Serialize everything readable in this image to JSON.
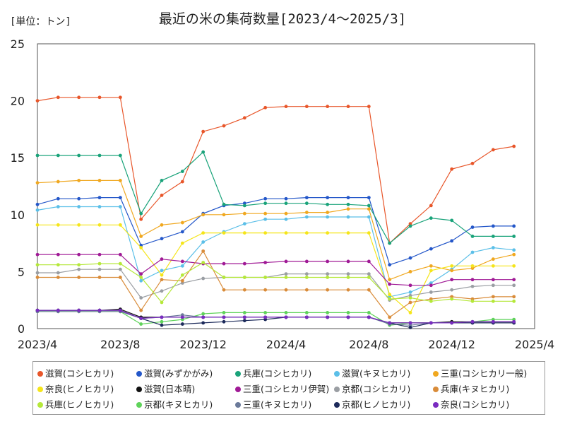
{
  "unit_label": "[単位：トン]",
  "title": "最近の米の集荷数量[2023/4～2025/3]",
  "chart_data": {
    "type": "line",
    "title": "最近の米の集荷数量[2023/4～2025/3]",
    "unit": "[単位：トン]",
    "xlabel": "",
    "ylabel": "",
    "ylim": [
      0,
      25
    ],
    "yticks": [
      "0",
      "5",
      "10",
      "15",
      "20",
      "25"
    ],
    "xticks": [
      "2023/4",
      "2023/8",
      "2023/12",
      "2024/4",
      "2024/8",
      "2024/12",
      "2025/4"
    ],
    "x": [
      "2023/4",
      "2023/5",
      "2023/6",
      "2023/7",
      "2023/8",
      "2023/9",
      "2023/10",
      "2023/11",
      "2023/12",
      "2024/1",
      "2024/2",
      "2024/3",
      "2024/4",
      "2024/5",
      "2024/6",
      "2024/7",
      "2024/8",
      "2024/9",
      "2024/10",
      "2024/11",
      "2024/12",
      "2025/1",
      "2025/2",
      "2025/3"
    ],
    "grid": true,
    "legend_position": "bottom",
    "series": [
      {
        "name": "滋賀(コシヒカリ)",
        "color": "#e8562a",
        "values": [
          20.0,
          20.3,
          20.3,
          20.3,
          20.3,
          9.6,
          11.7,
          12.9,
          17.3,
          17.8,
          18.5,
          19.4,
          19.5,
          19.5,
          19.5,
          19.5,
          19.5,
          7.5,
          9.2,
          10.8,
          14.0,
          14.5,
          15.7,
          16.0
        ]
      },
      {
        "name": "滋賀(みずかがみ)",
        "color": "#2457c9",
        "values": [
          10.9,
          11.4,
          11.4,
          11.5,
          11.5,
          7.3,
          7.9,
          8.5,
          10.1,
          10.8,
          11.0,
          11.4,
          11.4,
          11.5,
          11.5,
          11.5,
          11.5,
          5.6,
          6.2,
          7.0,
          7.7,
          8.9,
          9.0,
          9.0
        ]
      },
      {
        "name": "兵庫(コシヒカリ)",
        "color": "#1aa37a",
        "values": [
          15.2,
          15.2,
          15.2,
          15.2,
          15.2,
          10.1,
          13.0,
          13.8,
          15.5,
          10.9,
          10.8,
          11.0,
          11.0,
          11.0,
          10.9,
          10.9,
          10.8,
          7.5,
          9.0,
          9.7,
          9.5,
          8.1,
          8.1,
          8.1
        ]
      },
      {
        "name": "滋賀(キヌヒカリ)",
        "color": "#5bbfe8",
        "values": [
          10.4,
          10.7,
          10.7,
          10.7,
          10.7,
          4.2,
          5.1,
          5.5,
          7.6,
          8.5,
          9.2,
          9.6,
          9.6,
          9.8,
          9.8,
          9.8,
          9.8,
          2.8,
          3.2,
          4.0,
          5.2,
          6.7,
          7.1,
          6.9
        ]
      },
      {
        "name": "三重(コシヒカリ一般)",
        "color": "#f0a820",
        "values": [
          12.8,
          12.9,
          13.0,
          13.0,
          13.0,
          8.1,
          9.1,
          9.3,
          10.0,
          10.0,
          10.1,
          10.1,
          10.1,
          10.2,
          10.2,
          10.5,
          10.5,
          4.3,
          5.0,
          5.5,
          5.1,
          5.3,
          6.1,
          6.5
        ]
      },
      {
        "name": "奈良(ヒノヒカリ)",
        "color": "#f5e51a",
        "values": [
          9.1,
          9.1,
          9.1,
          9.1,
          9.1,
          7.1,
          4.7,
          7.5,
          8.4,
          8.4,
          8.4,
          8.4,
          8.4,
          8.4,
          8.4,
          8.4,
          8.4,
          3.0,
          1.4,
          5.1,
          5.5,
          5.5,
          5.5,
          5.5
        ]
      },
      {
        "name": "滋賀(日本晴)",
        "color": "#111111",
        "values": [
          1.6,
          1.6,
          1.6,
          1.6,
          1.7,
          1.0,
          1.0,
          1.0,
          1.0,
          1.0,
          1.0,
          1.0,
          1.0,
          1.0,
          1.0,
          1.0,
          1.0,
          0.5,
          0.5,
          0.5,
          0.6,
          0.6,
          0.6,
          0.6
        ]
      },
      {
        "name": "三重(コシヒカリ伊賀)",
        "color": "#a01a96",
        "values": [
          6.5,
          6.5,
          6.5,
          6.5,
          6.5,
          4.8,
          6.1,
          5.9,
          5.7,
          5.7,
          5.7,
          5.8,
          5.9,
          5.9,
          5.9,
          5.9,
          5.9,
          3.9,
          3.8,
          3.8,
          4.3,
          4.3,
          4.3,
          4.3
        ]
      },
      {
        "name": "京都(コシヒカリ)",
        "color": "#9a9ea3",
        "values": [
          4.9,
          4.9,
          5.2,
          5.2,
          5.2,
          2.7,
          3.3,
          4.0,
          4.4,
          4.5,
          4.5,
          4.5,
          4.8,
          4.8,
          4.8,
          4.8,
          4.8,
          2.5,
          2.9,
          3.2,
          3.4,
          3.7,
          3.8,
          3.8
        ]
      },
      {
        "name": "兵庫(キヌヒカリ)",
        "color": "#d98c3a",
        "values": [
          4.5,
          4.5,
          4.5,
          4.5,
          4.5,
          1.6,
          4.3,
          4.2,
          6.8,
          3.4,
          3.4,
          3.4,
          3.4,
          3.4,
          3.4,
          3.4,
          3.4,
          1.0,
          2.3,
          2.6,
          2.8,
          2.6,
          2.8,
          2.8
        ]
      },
      {
        "name": "兵庫(ヒノヒカリ)",
        "color": "#b5e83a",
        "values": [
          5.6,
          5.6,
          5.6,
          5.7,
          5.7,
          4.5,
          2.3,
          4.7,
          5.8,
          4.5,
          4.5,
          4.5,
          4.5,
          4.5,
          4.5,
          4.5,
          4.5,
          2.6,
          2.7,
          2.4,
          2.6,
          2.4,
          2.4,
          2.4
        ]
      },
      {
        "name": "京都(キヌヒカリ)",
        "color": "#5fd35a",
        "values": [
          1.5,
          1.5,
          1.5,
          1.5,
          1.5,
          0.4,
          0.6,
          0.8,
          1.3,
          1.4,
          1.4,
          1.4,
          1.4,
          1.4,
          1.4,
          1.4,
          1.4,
          0.3,
          0.5,
          0.5,
          0.5,
          0.6,
          0.8,
          0.8
        ]
      },
      {
        "name": "三重(キヌヒカリ)",
        "color": "#6b7a9a",
        "values": [
          1.5,
          1.5,
          1.5,
          1.5,
          1.5,
          0.9,
          1.0,
          1.2,
          1.0,
          1.0,
          1.0,
          1.0,
          1.0,
          1.0,
          1.0,
          1.0,
          1.0,
          0.4,
          0.3,
          0.5,
          0.5,
          0.5,
          0.5,
          0.5
        ]
      },
      {
        "name": "京都(ヒノヒカリ)",
        "color": "#1c2a5a",
        "values": [
          1.6,
          1.6,
          1.6,
          1.6,
          1.6,
          0.9,
          0.3,
          0.4,
          0.5,
          0.6,
          0.7,
          0.8,
          1.0,
          1.0,
          1.0,
          1.0,
          1.0,
          0.5,
          0.1,
          0.5,
          0.5,
          0.5,
          0.5,
          0.5
        ]
      },
      {
        "name": "奈良(コシヒカリ)",
        "color": "#7a2bc0",
        "values": [
          1.6,
          1.6,
          1.6,
          1.6,
          1.6,
          0.9,
          1.0,
          1.0,
          1.0,
          1.0,
          1.0,
          1.0,
          1.0,
          1.0,
          1.0,
          1.0,
          1.0,
          0.5,
          0.5,
          0.5,
          0.5,
          0.6,
          0.6,
          0.6
        ]
      }
    ]
  }
}
